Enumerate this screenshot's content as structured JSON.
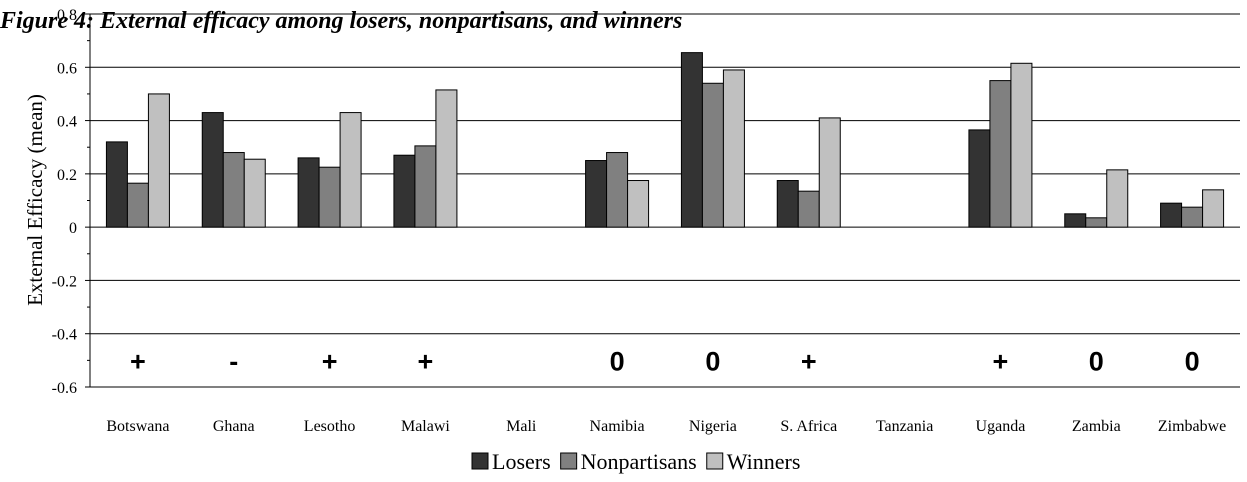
{
  "chart_data": {
    "type": "bar",
    "title": "Figure 4: External efficacy among losers, nonpartisans, and winners",
    "ylabel": "External Efficacy (mean)",
    "xlabel": "",
    "ylim": [
      -0.6,
      0.8
    ],
    "yticks": [
      "0.8",
      "0.6",
      "0.4",
      "0.2",
      "0",
      "-0.2",
      "-0.4",
      "-0.6"
    ],
    "ytick_values": [
      0.8,
      0.6,
      0.4,
      0.2,
      0,
      -0.2,
      -0.4,
      -0.6
    ],
    "grid": true,
    "legend_position": "bottom",
    "categories": [
      "Botswana",
      "Ghana",
      "Lesotho",
      "Malawi",
      "Mali",
      "Namibia",
      "Nigeria",
      "S. Africa",
      "Tanzania",
      "Uganda",
      "Zambia",
      "Zimbabwe"
    ],
    "series": [
      {
        "name": "Losers",
        "color": "#333333",
        "values": [
          0.32,
          0.43,
          0.26,
          0.27,
          null,
          0.25,
          0.655,
          0.175,
          null,
          0.365,
          0.05,
          0.09
        ]
      },
      {
        "name": "Nonpartisans",
        "color": "#808080",
        "values": [
          0.165,
          0.28,
          0.225,
          0.305,
          null,
          0.28,
          0.54,
          0.135,
          null,
          0.55,
          0.035,
          0.075
        ]
      },
      {
        "name": "Winners",
        "color": "#c0c0c0",
        "values": [
          0.5,
          0.255,
          0.43,
          0.515,
          null,
          0.175,
          0.59,
          0.41,
          null,
          0.615,
          0.215,
          0.14
        ]
      }
    ],
    "annotations": [
      "+",
      "-",
      "+",
      "+",
      "",
      "0",
      "0",
      "+",
      "",
      "+",
      "0",
      "0"
    ],
    "annotation_y": -0.5
  }
}
